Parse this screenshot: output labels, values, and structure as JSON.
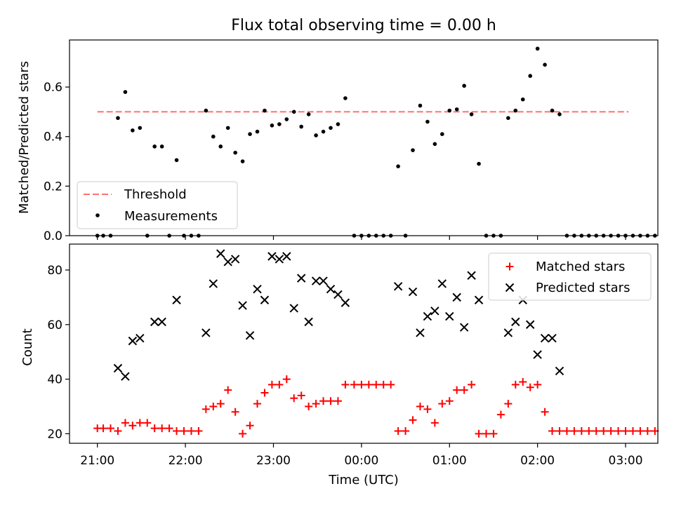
{
  "figure": {
    "title": "Flux total observing time = 0.00 h"
  },
  "chart_data": [
    {
      "type": "scatter",
      "panel": "top",
      "title": "Flux total observing time = 0.00 h",
      "xlabel": "",
      "ylabel": "Matched/Predicted stars",
      "xlim": [
        "20:41",
        "03:22"
      ],
      "ylim": [
        0.0,
        0.79
      ],
      "yticks": [
        0.0,
        0.2,
        0.4,
        0.6
      ],
      "ytick_labels": [
        "0.0",
        "0.2",
        "0.4",
        "0.6"
      ],
      "xticks": [
        "21:00",
        "22:00",
        "23:00",
        "00:00",
        "01:00",
        "02:00",
        "03:00"
      ],
      "grid": false,
      "legend": "lower-left",
      "threshold": {
        "name": "Threshold",
        "color": "#ff6f6f",
        "style": "dashed",
        "y": 0.5,
        "x_start": "21:00",
        "x_end": "03:02"
      },
      "series": [
        {
          "name": "Measurements",
          "color": "#000000",
          "marker": "dot",
          "points": [
            [
              "21:00",
              0.0
            ],
            [
              "21:04",
              0.0
            ],
            [
              "21:09",
              0.0
            ],
            [
              "21:14",
              0.475
            ],
            [
              "21:19",
              0.58
            ],
            [
              "21:24",
              0.425
            ],
            [
              "21:29",
              0.435
            ],
            [
              "21:34",
              0.0
            ],
            [
              "21:39",
              0.36
            ],
            [
              "21:44",
              0.36
            ],
            [
              "21:49",
              0.0
            ],
            [
              "21:54",
              0.305
            ],
            [
              "21:59",
              0.0
            ],
            [
              "22:04",
              0.0
            ],
            [
              "22:09",
              0.0
            ],
            [
              "22:14",
              0.505
            ],
            [
              "22:19",
              0.4
            ],
            [
              "22:24",
              0.36
            ],
            [
              "22:29",
              0.435
            ],
            [
              "22:34",
              0.335
            ],
            [
              "22:39",
              0.3
            ],
            [
              "22:44",
              0.41
            ],
            [
              "22:49",
              0.42
            ],
            [
              "22:54",
              0.505
            ],
            [
              "22:59",
              0.445
            ],
            [
              "23:04",
              0.45
            ],
            [
              "23:09",
              0.47
            ],
            [
              "23:14",
              0.5
            ],
            [
              "23:19",
              0.44
            ],
            [
              "23:24",
              0.49
            ],
            [
              "23:29",
              0.405
            ],
            [
              "23:34",
              0.42
            ],
            [
              "23:39",
              0.435
            ],
            [
              "23:44",
              0.45
            ],
            [
              "23:49",
              0.555
            ],
            [
              "23:55",
              0.0
            ],
            [
              "00:00",
              0.0
            ],
            [
              "00:05",
              0.0
            ],
            [
              "00:10",
              0.0
            ],
            [
              "00:15",
              0.0
            ],
            [
              "00:20",
              0.0
            ],
            [
              "00:25",
              0.28
            ],
            [
              "00:30",
              0.0
            ],
            [
              "00:35",
              0.345
            ],
            [
              "00:40",
              0.525
            ],
            [
              "00:45",
              0.46
            ],
            [
              "00:50",
              0.37
            ],
            [
              "00:55",
              0.41
            ],
            [
              "01:00",
              0.505
            ],
            [
              "01:05",
              0.51
            ],
            [
              "01:10",
              0.605
            ],
            [
              "01:15",
              0.49
            ],
            [
              "01:20",
              0.29
            ],
            [
              "01:25",
              0.0
            ],
            [
              "01:30",
              0.0
            ],
            [
              "01:35",
              0.0
            ],
            [
              "01:40",
              0.475
            ],
            [
              "01:45",
              0.505
            ],
            [
              "01:50",
              0.55
            ],
            [
              "01:55",
              0.645
            ],
            [
              "02:00",
              0.755
            ],
            [
              "02:05",
              0.69
            ],
            [
              "02:10",
              0.505
            ],
            [
              "02:15",
              0.49
            ],
            [
              "02:20",
              0.0
            ],
            [
              "02:25",
              0.0
            ],
            [
              "02:30",
              0.0
            ],
            [
              "02:35",
              0.0
            ],
            [
              "02:40",
              0.0
            ],
            [
              "02:45",
              0.0
            ],
            [
              "02:50",
              0.0
            ],
            [
              "02:55",
              0.0
            ],
            [
              "03:00",
              0.0
            ],
            [
              "03:05",
              0.0
            ],
            [
              "03:10",
              0.0
            ],
            [
              "03:15",
              0.0
            ],
            [
              "03:20",
              0.0
            ]
          ]
        }
      ]
    },
    {
      "type": "scatter",
      "panel": "bottom",
      "xlabel": "Time (UTC)",
      "ylabel": "Count",
      "xlim": [
        "20:41",
        "03:22"
      ],
      "ylim": [
        16.5,
        89.5
      ],
      "yticks": [
        20,
        40,
        60,
        80
      ],
      "ytick_labels": [
        "20",
        "40",
        "60",
        "80"
      ],
      "xticks": [
        "21:00",
        "22:00",
        "23:00",
        "00:00",
        "01:00",
        "02:00",
        "03:00"
      ],
      "grid": false,
      "legend": "top-right",
      "series": [
        {
          "name": "Matched stars",
          "color": "#ff0000",
          "marker": "plus",
          "points": [
            [
              "21:00",
              22
            ],
            [
              "21:04",
              22
            ],
            [
              "21:09",
              22
            ],
            [
              "21:14",
              21
            ],
            [
              "21:19",
              24
            ],
            [
              "21:24",
              23
            ],
            [
              "21:29",
              24
            ],
            [
              "21:34",
              24
            ],
            [
              "21:39",
              22
            ],
            [
              "21:44",
              22
            ],
            [
              "21:49",
              22
            ],
            [
              "21:54",
              21
            ],
            [
              "21:59",
              21
            ],
            [
              "22:04",
              21
            ],
            [
              "22:09",
              21
            ],
            [
              "22:14",
              29
            ],
            [
              "22:19",
              30
            ],
            [
              "22:24",
              31
            ],
            [
              "22:29",
              36
            ],
            [
              "22:34",
              28
            ],
            [
              "22:39",
              20
            ],
            [
              "22:44",
              23
            ],
            [
              "22:49",
              31
            ],
            [
              "22:54",
              35
            ],
            [
              "22:59",
              38
            ],
            [
              "23:04",
              38
            ],
            [
              "23:09",
              40
            ],
            [
              "23:14",
              33
            ],
            [
              "23:19",
              34
            ],
            [
              "23:24",
              30
            ],
            [
              "23:29",
              31
            ],
            [
              "23:34",
              32
            ],
            [
              "23:39",
              32
            ],
            [
              "23:44",
              32
            ],
            [
              "23:49",
              38
            ],
            [
              "23:55",
              38
            ],
            [
              "00:00",
              38
            ],
            [
              "00:05",
              38
            ],
            [
              "00:10",
              38
            ],
            [
              "00:15",
              38
            ],
            [
              "00:20",
              38
            ],
            [
              "00:25",
              21
            ],
            [
              "00:30",
              21
            ],
            [
              "00:35",
              25
            ],
            [
              "00:40",
              30
            ],
            [
              "00:45",
              29
            ],
            [
              "00:50",
              24
            ],
            [
              "00:55",
              31
            ],
            [
              "01:00",
              32
            ],
            [
              "01:05",
              36
            ],
            [
              "01:10",
              36
            ],
            [
              "01:15",
              38
            ],
            [
              "01:20",
              20
            ],
            [
              "01:25",
              20
            ],
            [
              "01:30",
              20
            ],
            [
              "01:35",
              27
            ],
            [
              "01:40",
              31
            ],
            [
              "01:45",
              38
            ],
            [
              "01:50",
              39
            ],
            [
              "01:55",
              37
            ],
            [
              "02:00",
              38
            ],
            [
              "02:05",
              28
            ],
            [
              "02:10",
              21
            ],
            [
              "02:15",
              21
            ],
            [
              "02:20",
              21
            ],
            [
              "02:25",
              21
            ],
            [
              "02:30",
              21
            ],
            [
              "02:35",
              21
            ],
            [
              "02:40",
              21
            ],
            [
              "02:45",
              21
            ],
            [
              "02:50",
              21
            ],
            [
              "02:55",
              21
            ],
            [
              "03:00",
              21
            ],
            [
              "03:05",
              21
            ],
            [
              "03:10",
              21
            ],
            [
              "03:15",
              21
            ],
            [
              "03:20",
              21
            ]
          ]
        },
        {
          "name": "Predicted stars",
          "color": "#000000",
          "marker": "x",
          "points": [
            [
              "21:14",
              44
            ],
            [
              "21:19",
              41
            ],
            [
              "21:24",
              54
            ],
            [
              "21:29",
              55
            ],
            [
              "21:39",
              61
            ],
            [
              "21:44",
              61
            ],
            [
              "21:54",
              69
            ],
            [
              "22:14",
              57
            ],
            [
              "22:19",
              75
            ],
            [
              "22:24",
              86
            ],
            [
              "22:29",
              83
            ],
            [
              "22:34",
              84
            ],
            [
              "22:39",
              67
            ],
            [
              "22:44",
              56
            ],
            [
              "22:49",
              73
            ],
            [
              "22:54",
              69
            ],
            [
              "22:59",
              85
            ],
            [
              "23:04",
              84
            ],
            [
              "23:09",
              85
            ],
            [
              "23:14",
              66
            ],
            [
              "23:19",
              77
            ],
            [
              "23:24",
              61
            ],
            [
              "23:29",
              76
            ],
            [
              "23:34",
              76
            ],
            [
              "23:39",
              73
            ],
            [
              "23:44",
              71
            ],
            [
              "23:49",
              68
            ],
            [
              "00:25",
              74
            ],
            [
              "00:35",
              72
            ],
            [
              "00:40",
              57
            ],
            [
              "00:45",
              63
            ],
            [
              "00:50",
              65
            ],
            [
              "00:55",
              75
            ],
            [
              "01:00",
              63
            ],
            [
              "01:05",
              70
            ],
            [
              "01:10",
              59
            ],
            [
              "01:15",
              78
            ],
            [
              "01:20",
              69
            ],
            [
              "01:40",
              57
            ],
            [
              "01:45",
              61
            ],
            [
              "01:50",
              69
            ],
            [
              "01:55",
              60
            ],
            [
              "02:00",
              49
            ],
            [
              "02:05",
              55
            ],
            [
              "02:10",
              55
            ],
            [
              "02:15",
              43
            ]
          ]
        }
      ]
    }
  ]
}
